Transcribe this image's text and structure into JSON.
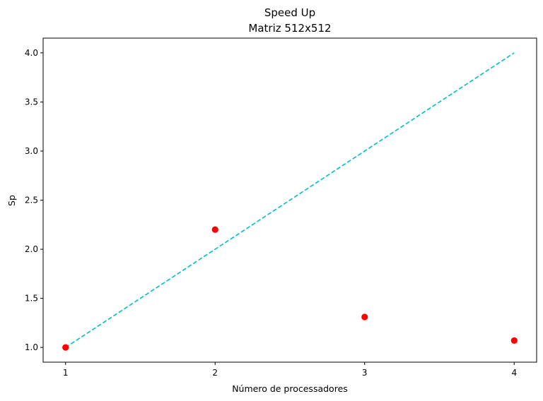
{
  "chart_data": {
    "type": "scatter",
    "title": "Speed Up",
    "subtitle": "Matriz 512x512",
    "xlabel": "Número de processadores",
    "ylabel": "Sp",
    "xlim": [
      0.85,
      4.15
    ],
    "ylim": [
      0.85,
      4.15
    ],
    "x_ticks": [
      1,
      2,
      3,
      4
    ],
    "y_ticks": [
      "1.0",
      "1.5",
      "2.0",
      "2.5",
      "3.0",
      "3.5",
      "4.0"
    ],
    "grid": false,
    "series": [
      {
        "kind": "points",
        "color": "#ff0000",
        "x": [
          1,
          2,
          3,
          4
        ],
        "y": [
          1.0,
          2.2,
          1.31,
          1.07
        ]
      },
      {
        "kind": "dashed-line",
        "color": "#00bfbf",
        "x": [
          1,
          2,
          3,
          4
        ],
        "y": [
          1,
          2,
          3,
          4
        ]
      }
    ]
  }
}
